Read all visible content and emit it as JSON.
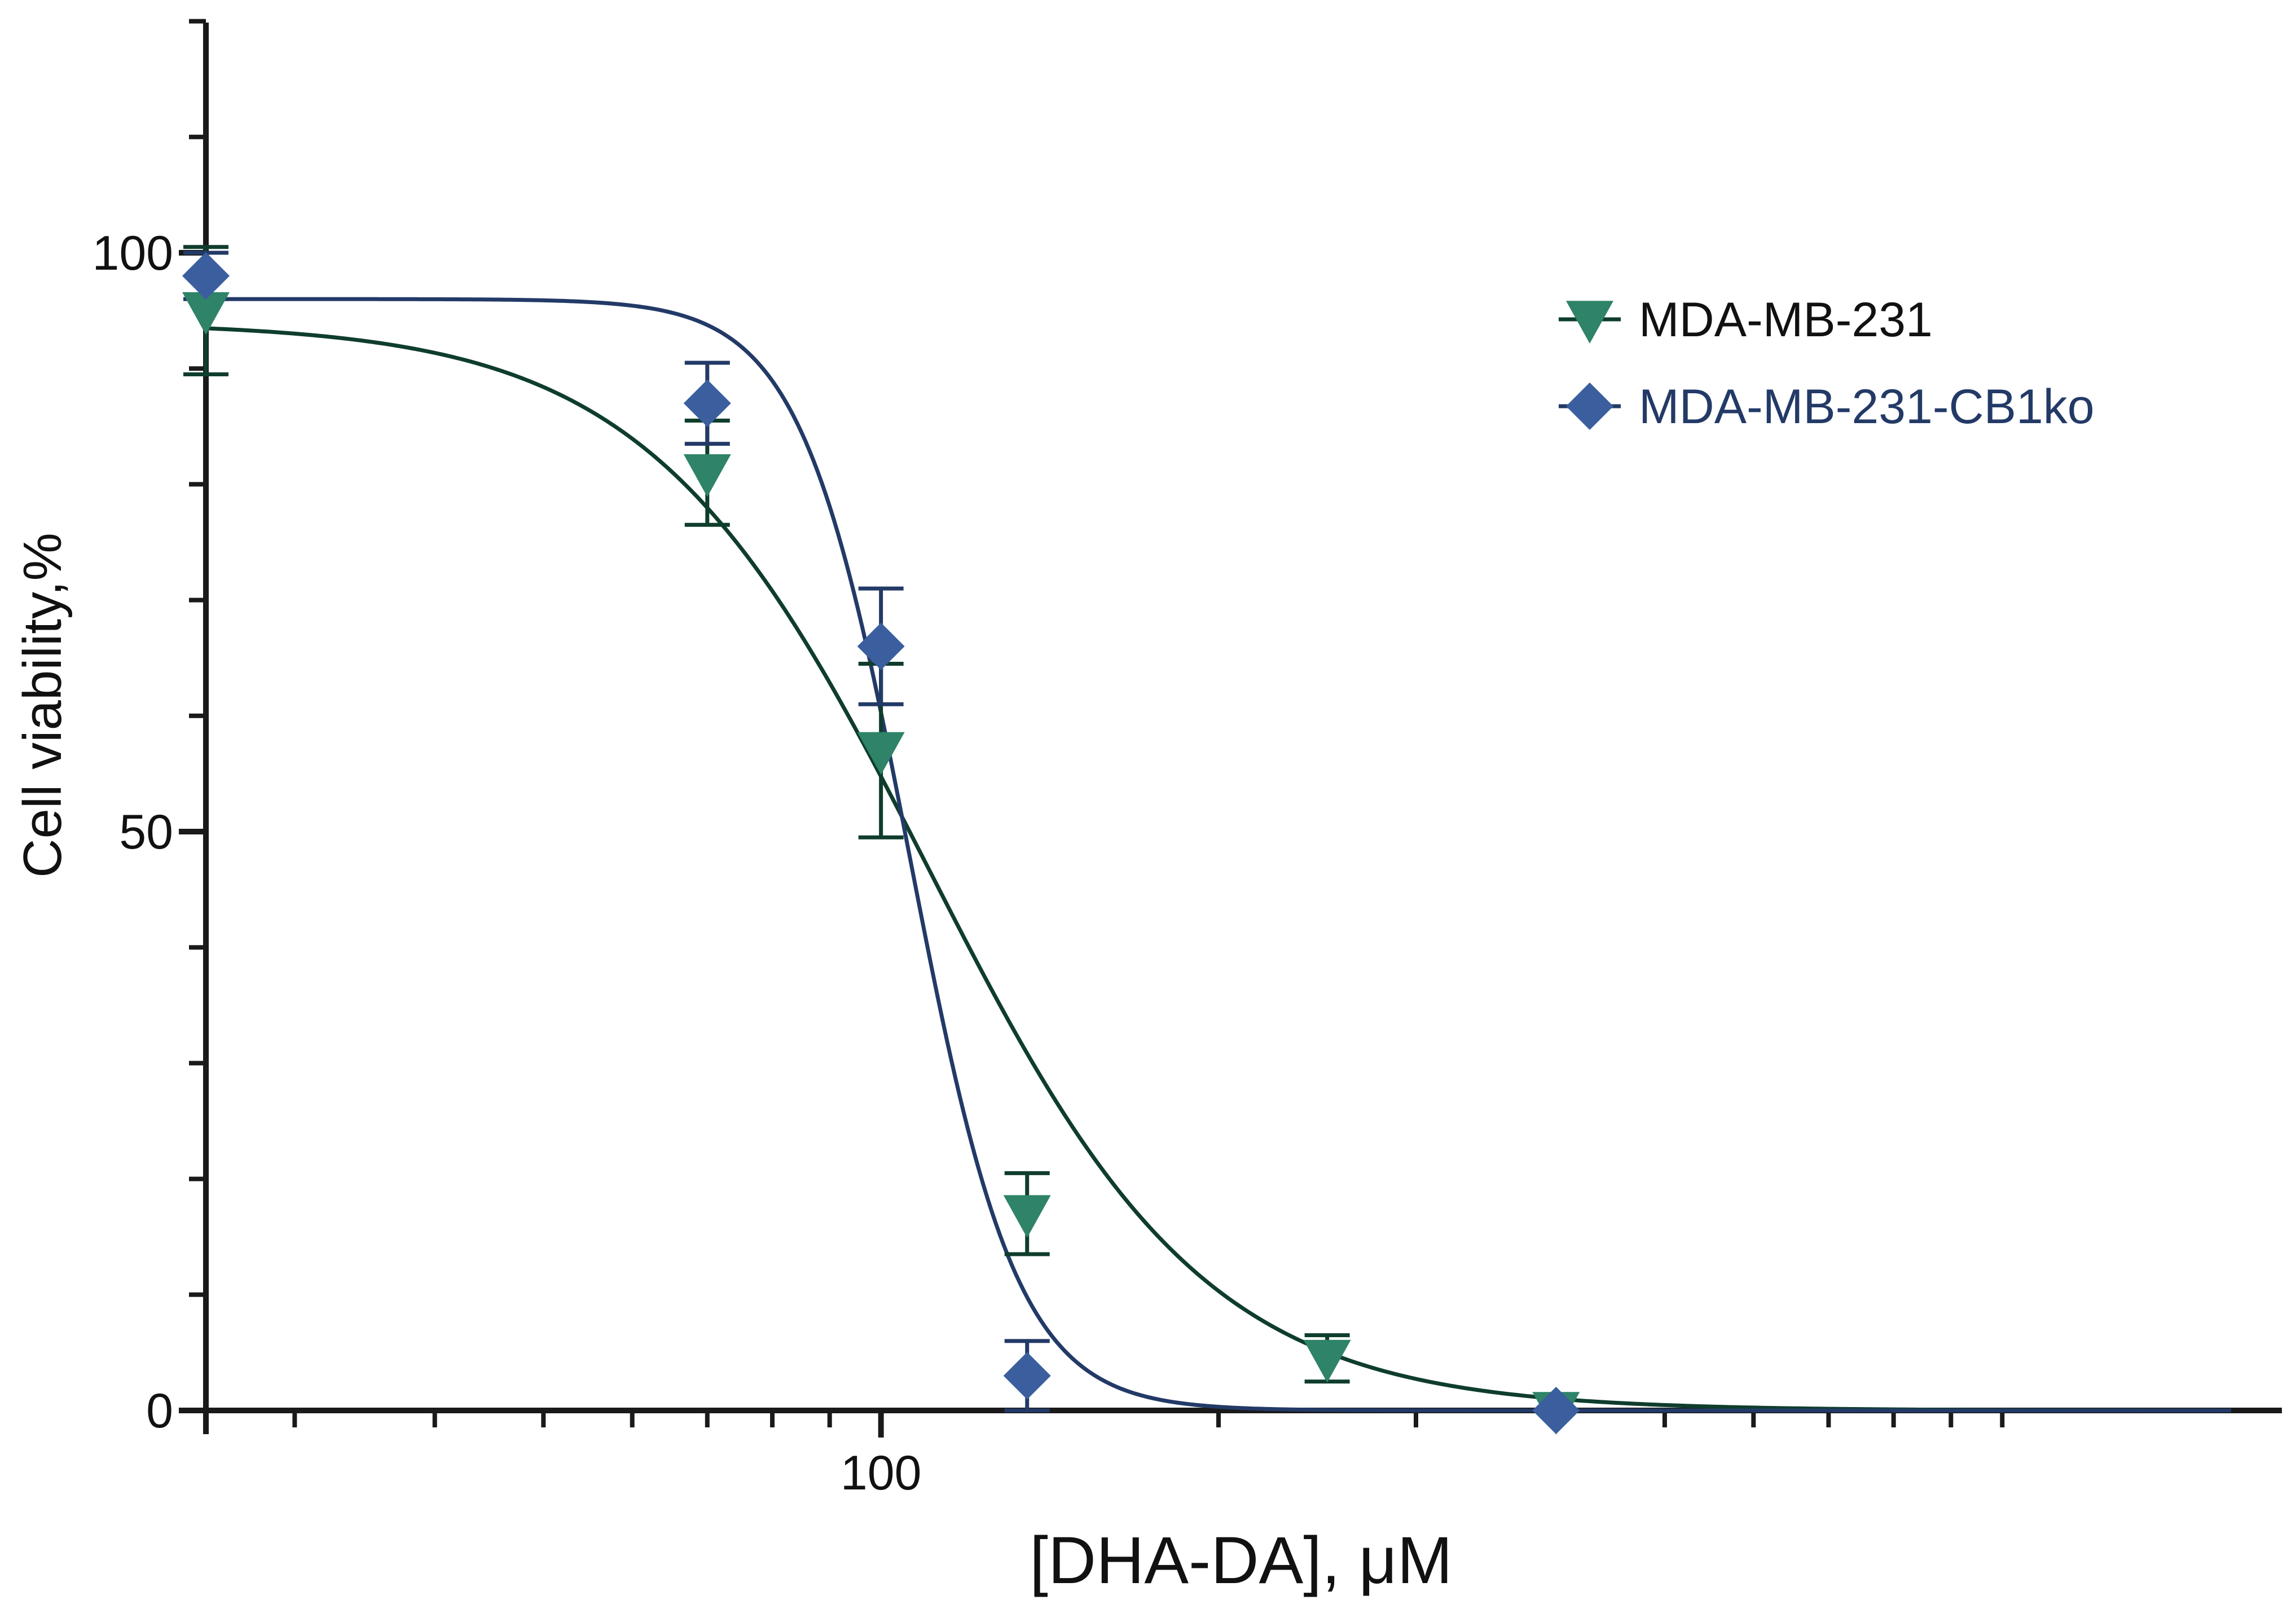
{
  "chart_data": {
    "type": "scatter",
    "title": "",
    "xlabel": "[DHA-DA], μM",
    "ylabel": "Cell viability,%",
    "x_scale": "log",
    "xlim": [
      25,
      1600
    ],
    "ylim": [
      0,
      120
    ],
    "x_ticks": [
      {
        "value": 100,
        "label": "100"
      }
    ],
    "y_ticks": [
      {
        "value": 0,
        "label": "0"
      },
      {
        "value": 50,
        "label": "50"
      },
      {
        "value": 100,
        "label": "100"
      }
    ],
    "grid": false,
    "legend_position": "top-right",
    "series": [
      {
        "name": "MDA-MB-231",
        "marker": "triangle-down",
        "marker_color": "#2e8368",
        "line_color": "#0f3d2c",
        "points": [
          {
            "x": 25,
            "y": 95,
            "err": 5.5
          },
          {
            "x": 70,
            "y": 81,
            "err": 4.5
          },
          {
            "x": 100,
            "y": 57,
            "err": 7.5
          },
          {
            "x": 135,
            "y": 17,
            "err": 3.5
          },
          {
            "x": 250,
            "y": 4.5,
            "err": 2
          },
          {
            "x": 400,
            "y": 0,
            "err": 0
          }
        ],
        "fit": {
          "top": 94,
          "bottom": 0,
          "ic50": 110,
          "hill": 3.5
        }
      },
      {
        "name": "MDA-MB-231-CB1ko",
        "marker": "diamond",
        "marker_color": "#3b5f9e",
        "line_color": "#233a67",
        "points": [
          {
            "x": 25,
            "y": 98,
            "err": 2
          },
          {
            "x": 70,
            "y": 87,
            "err": 3.5
          },
          {
            "x": 100,
            "y": 66,
            "err": 5
          },
          {
            "x": 135,
            "y": 3,
            "err": 3
          },
          {
            "x": 400,
            "y": 0,
            "err": 0
          }
        ],
        "fit": {
          "top": 96,
          "bottom": 0,
          "ic50": 106,
          "hill": 9
        }
      }
    ]
  }
}
